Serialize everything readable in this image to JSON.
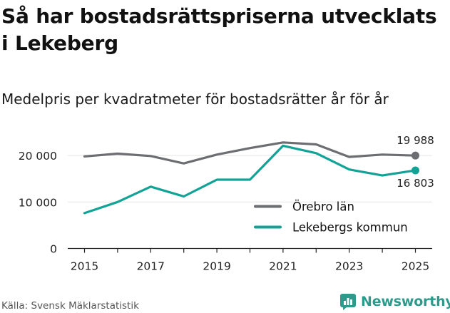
{
  "title": "Så har bostadsrättspriserna utvecklats i Lekeberg",
  "subtitle": "Medelpris per kvadratmeter för bostadsrätter år för år",
  "source": "Källa: Svensk Mäklarstatistik",
  "brand": "Newsworthy",
  "colors": {
    "orebro": "#6d6e72",
    "lekeberg": "#12a396",
    "axis": "#222222",
    "grid": "#e6e6e6",
    "brand": "#2e9a8c"
  },
  "chart_data": {
    "type": "line",
    "title": "Så har bostadsrättspriserna utvecklats i Lekeberg",
    "subtitle": "Medelpris per kvadratmeter för bostadsrätter år för år",
    "x": [
      2015,
      2016,
      2017,
      2018,
      2019,
      2020,
      2021,
      2022,
      2023,
      2024,
      2025
    ],
    "xticks": [
      "2015",
      "2017",
      "2019",
      "2021",
      "2023",
      "2025"
    ],
    "yticks": [
      "0",
      "10 000",
      "20 000"
    ],
    "ylim": [
      0,
      25000
    ],
    "series": [
      {
        "name": "Örebro län",
        "color": "#6d6e72",
        "values": [
          19800,
          20400,
          19900,
          18300,
          20200,
          21600,
          22800,
          22400,
          19700,
          20200,
          19988
        ],
        "end_label": "19 988"
      },
      {
        "name": "Lekebergs kommun",
        "color": "#12a396",
        "values": [
          7600,
          10000,
          13300,
          11200,
          14800,
          14800,
          22100,
          20500,
          17000,
          15700,
          16803
        ],
        "end_label": "16 803"
      }
    ],
    "legend": "bottom-right"
  }
}
